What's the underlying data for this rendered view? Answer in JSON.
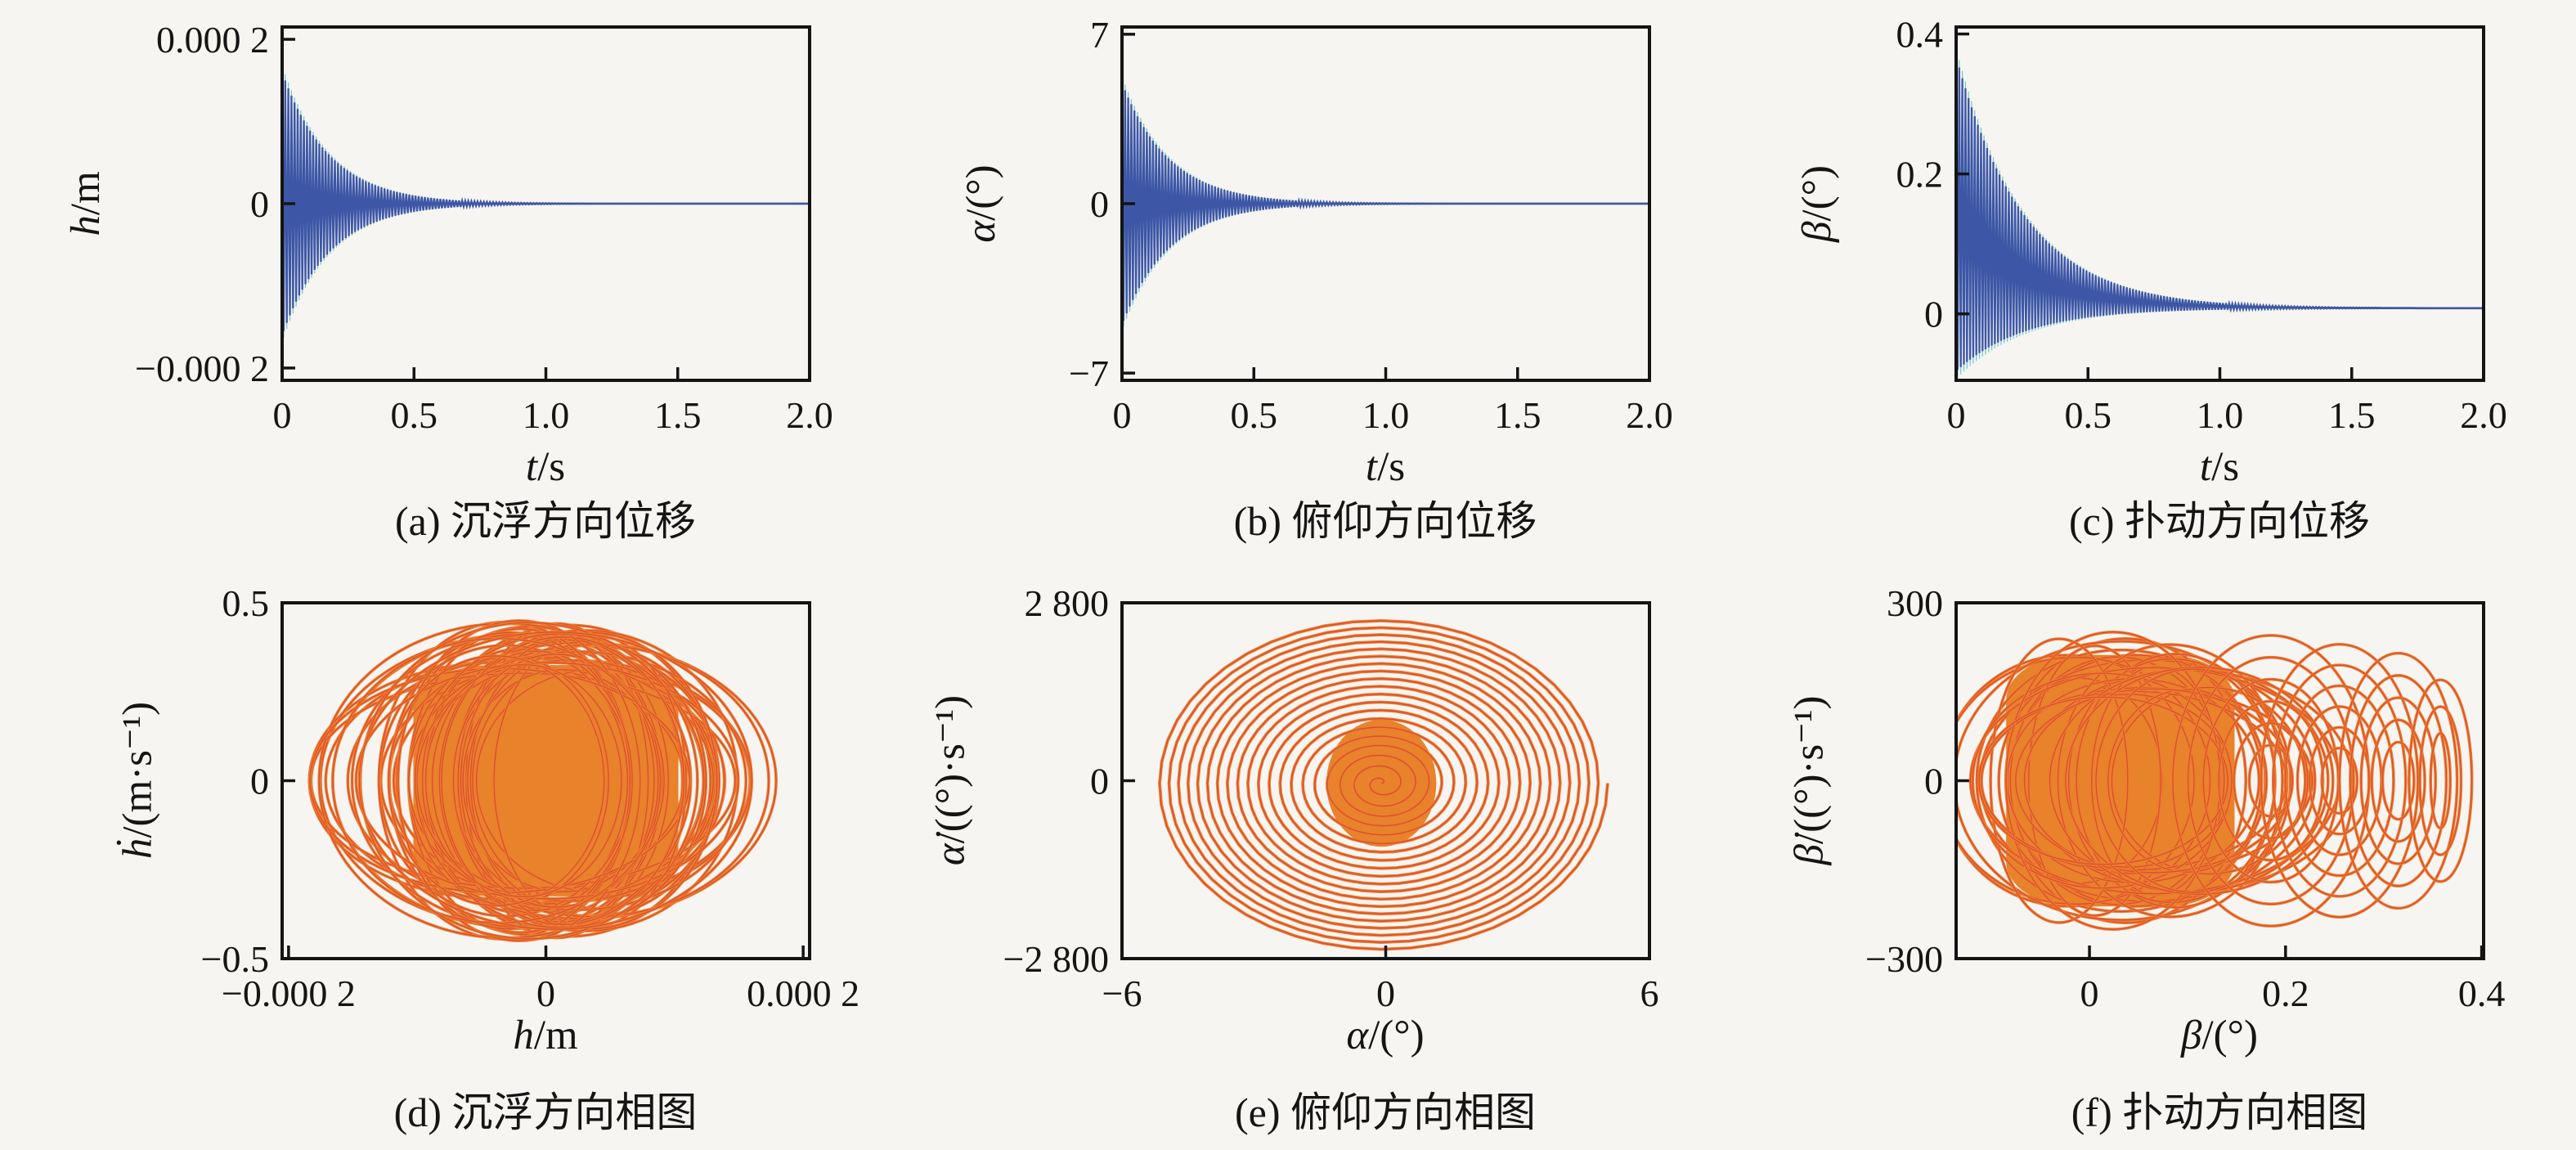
{
  "palette": {
    "background": "#f6f5f2",
    "frame": "#141414",
    "blue_series": "#3d57a6",
    "fringe_cyan": "#6fc8ce",
    "fringe_purple": "#9c5fc9",
    "tail_line": "#30304d",
    "orange_stroke": "#ed7d31",
    "orange_inner": "#d94f2b",
    "orange_fill": "#e8822b"
  },
  "chart_data": [
    {
      "id": "a",
      "type": "line",
      "kind": "damped-timeseries",
      "caption": "(a) 沉浮方向位移",
      "xlabel": {
        "var": "t",
        "rest": "/s"
      },
      "ylabel": {
        "var": "h",
        "rest": "/m"
      },
      "xlim": [
        0,
        2
      ],
      "ylim": [
        -0.000215,
        0.000215
      ],
      "xticks": [
        {
          "v": 0,
          "label": "0"
        },
        {
          "v": 0.5,
          "label": "0.5"
        },
        {
          "v": 1.0,
          "label": "1.0"
        },
        {
          "v": 1.5,
          "label": "1.5"
        },
        {
          "v": 2.0,
          "label": "2.0"
        }
      ],
      "yticks": [
        {
          "v": 0.0002,
          "label": "0.000 2"
        },
        {
          "v": 0,
          "label": "0"
        },
        {
          "v": -0.0002,
          "label": "−0.000 2"
        }
      ],
      "series": {
        "type": "damped",
        "amp": 0.00016,
        "tau": 0.18,
        "cycles": 170,
        "mean0": 0,
        "mtau": 0.3,
        "settle": 0,
        "color": "#3d57a6",
        "line": "#30304d",
        "fringes": [
          [
            "#6fc8ce",
            1.05
          ],
          [
            "#9c5fc9",
            0.97
          ]
        ]
      }
    },
    {
      "id": "b",
      "type": "line",
      "kind": "damped-timeseries",
      "caption": "(b) 俯仰方向位移",
      "xlabel": {
        "var": "t",
        "rest": "/s"
      },
      "ylabel": {
        "var": "α",
        "rest": "/(°)"
      },
      "xlim": [
        0,
        2
      ],
      "ylim": [
        -7.3,
        7.3
      ],
      "xticks": [
        {
          "v": 0,
          "label": "0"
        },
        {
          "v": 0.5,
          "label": "0.5"
        },
        {
          "v": 1.0,
          "label": "1.0"
        },
        {
          "v": 1.5,
          "label": "1.5"
        },
        {
          "v": 2.0,
          "label": "2.0"
        }
      ],
      "yticks": [
        {
          "v": 7,
          "label": "7"
        },
        {
          "v": 0,
          "label": "0"
        },
        {
          "v": -7,
          "label": "−7"
        }
      ],
      "series": {
        "type": "damped",
        "amp": 5.0,
        "tau": 0.18,
        "cycles": 170,
        "mean0": 0,
        "mtau": 0.3,
        "settle": 0,
        "color": "#3d57a6",
        "line": "#30304d",
        "fringes": [
          [
            "#6fc8ce",
            1.05
          ],
          [
            "#9c5fc9",
            0.97
          ]
        ]
      }
    },
    {
      "id": "c",
      "type": "line",
      "kind": "damped-timeseries",
      "caption": "(c) 扑动方向位移",
      "xlabel": {
        "var": "t",
        "rest": "/s"
      },
      "ylabel": {
        "var": "β",
        "rest": "/(°)"
      },
      "xlim": [
        0,
        2
      ],
      "ylim": [
        -0.095,
        0.41
      ],
      "xticks": [
        {
          "v": 0,
          "label": "0"
        },
        {
          "v": 0.5,
          "label": "0.5"
        },
        {
          "v": 1.0,
          "label": "1.0"
        },
        {
          "v": 1.5,
          "label": "1.5"
        },
        {
          "v": 2.0,
          "label": "2.0"
        }
      ],
      "yticks": [
        {
          "v": 0.4,
          "label": "0.4"
        },
        {
          "v": 0.2,
          "label": "0.2"
        },
        {
          "v": 0,
          "label": "0"
        }
      ],
      "series": {
        "type": "damped",
        "amp": 0.225,
        "tau": 0.26,
        "cycles": 170,
        "mean0": 0.135,
        "mtau": 0.26,
        "settle": 0.008,
        "color": "#3d57a6",
        "line": "#30304d",
        "fringes": [
          [
            "#6fc8ce",
            1.05
          ],
          [
            "#9c5fc9",
            0.97
          ]
        ]
      }
    },
    {
      "id": "d",
      "type": "scatter",
      "kind": "phase-portrait",
      "caption": "(d) 沉浮方向相图",
      "xlabel": {
        "var": "h",
        "rest": "/m"
      },
      "ylabel": {
        "var": "ḣ",
        "rest": "/(m·s⁻¹)"
      },
      "xlim": [
        -0.000205,
        0.000205
      ],
      "ylim": [
        -0.5,
        0.5
      ],
      "xticks": [
        {
          "v": -0.0002,
          "label": "−0.000 2"
        },
        {
          "v": 0,
          "label": "0"
        },
        {
          "v": 0.0002,
          "label": "0.000 2"
        }
      ],
      "yticks": [
        {
          "v": 0.5,
          "label": "0.5"
        },
        {
          "v": 0,
          "label": "0"
        },
        {
          "v": -0.5,
          "label": "−0.5"
        }
      ],
      "series": {
        "type": "rings",
        "core": {
          "x0": -0.000103,
          "x1": 0.000103,
          "ry": 0.325
        },
        "scatter": {
          "n": 48,
          "cx": [
            -4e-05,
            4e-05
          ],
          "rx": [
            7e-05,
            0.000165
          ],
          "ry": [
            0.3,
            0.452
          ],
          "seed": 5
        },
        "clusters": [],
        "stroke": "#ed7d31",
        "stroke2": "#d94f2b",
        "fill": "#e8822b"
      }
    },
    {
      "id": "e",
      "type": "scatter",
      "kind": "phase-portrait",
      "caption": "(e) 俯仰方向相图",
      "xlabel": {
        "var": "α",
        "rest": "/(°)"
      },
      "ylabel": {
        "var": "α̇",
        "rest": "/((°)·s⁻¹)"
      },
      "xlim": [
        -6,
        6
      ],
      "ylim": [
        -2800,
        2800
      ],
      "xticks": [
        {
          "v": -6,
          "label": "−6"
        },
        {
          "v": 0,
          "label": "0"
        },
        {
          "v": 6,
          "label": "6"
        }
      ],
      "yticks": [
        {
          "v": 2800,
          "label": "2 800"
        },
        {
          "v": 0,
          "label": "0"
        },
        {
          "v": -2800,
          "label": "−2 800"
        }
      ],
      "series": {
        "type": "spiral",
        "cx": -0.1,
        "cy": -40,
        "rx": 5.15,
        "ry": 2640,
        "turns": 20,
        "rpow": 0.82,
        "core": {
          "rx": 1.25,
          "ry": 1000
        },
        "stroke": "#ed7d31",
        "stroke2": "#d94f2b",
        "fill": "#e8822b"
      }
    },
    {
      "id": "f",
      "type": "scatter",
      "kind": "phase-portrait",
      "caption": "(f) 扑动方向相图",
      "xlabel": {
        "var": "β",
        "rest": "/(°)"
      },
      "ylabel": {
        "var": "β̇",
        "rest": "/((°)·s⁻¹)"
      },
      "xlim": [
        -0.136,
        0.402
      ],
      "ylim": [
        -300,
        300
      ],
      "xticks": [
        {
          "v": 0,
          "label": "0"
        },
        {
          "v": 0.2,
          "label": "0.2"
        },
        {
          "v": 0.4,
          "label": "0.4"
        }
      ],
      "yticks": [
        {
          "v": 300,
          "label": "300"
        },
        {
          "v": 0,
          "label": "0"
        },
        {
          "v": -300,
          "label": "−300"
        }
      ],
      "series": {
        "type": "rings",
        "core": {
          "x0": -0.085,
          "x1": 0.148,
          "ry": 212
        },
        "scatter": {
          "n": 30,
          "cx": [
            -0.035,
            0.125
          ],
          "rx": [
            0.06,
            0.19
          ],
          "ry": [
            140,
            258
          ],
          "seed": 11
        },
        "clusters": [
          {
            "cx": 0.185,
            "n": 6,
            "rx": [
              0.022,
              0.1
            ],
            "ry": [
              60,
              245
            ]
          },
          {
            "cx": 0.255,
            "n": 6,
            "rx": [
              0.018,
              0.08
            ],
            "ry": [
              55,
              230
            ]
          },
          {
            "cx": 0.315,
            "n": 5,
            "rx": [
              0.016,
              0.06
            ],
            "ry": [
              65,
              215
            ]
          },
          {
            "cx": 0.358,
            "n": 3,
            "rx": [
              0.01,
              0.032
            ],
            "ry": [
              80,
              170
            ]
          }
        ],
        "stroke": "#ed7d31",
        "stroke2": "#d94f2b",
        "fill": "#e8822b"
      }
    }
  ]
}
